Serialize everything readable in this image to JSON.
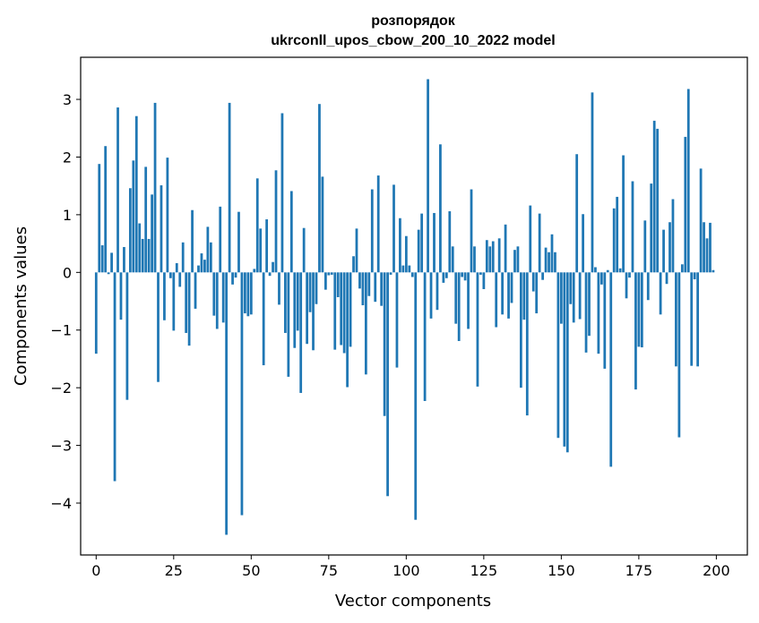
{
  "chart_data": {
    "type": "bar",
    "title": "розпорядок",
    "subtitle": "ukrconll_upos_cbow_200_10_2022 model",
    "xlabel": "Vector components",
    "ylabel": "Components values",
    "xlim": [
      -5,
      210
    ],
    "ylim": [
      -4.9,
      3.73
    ],
    "xticks": [
      0,
      25,
      50,
      75,
      100,
      125,
      150,
      175,
      200
    ],
    "yticks": [
      -4,
      -3,
      -2,
      -1,
      0,
      1,
      2,
      3
    ],
    "ytick_labels": [
      "−4",
      "−3",
      "−2",
      "−1",
      "0",
      "1",
      "2",
      "3"
    ],
    "grid": false,
    "bar_color": "#1f77b4",
    "x": [
      0,
      1,
      2,
      3,
      4,
      5,
      6,
      7,
      8,
      9,
      10,
      11,
      12,
      13,
      14,
      15,
      16,
      17,
      18,
      19,
      20,
      21,
      22,
      23,
      24,
      25,
      26,
      27,
      28,
      29,
      30,
      31,
      32,
      33,
      34,
      35,
      36,
      37,
      38,
      39,
      40,
      41,
      42,
      43,
      44,
      45,
      46,
      47,
      48,
      49,
      50,
      51,
      52,
      53,
      54,
      55,
      56,
      57,
      58,
      59,
      60,
      61,
      62,
      63,
      64,
      65,
      66,
      67,
      68,
      69,
      70,
      71,
      72,
      73,
      74,
      75,
      76,
      77,
      78,
      79,
      80,
      81,
      82,
      83,
      84,
      85,
      86,
      87,
      88,
      89,
      90,
      91,
      92,
      93,
      94,
      95,
      96,
      97,
      98,
      99,
      100,
      101,
      102,
      103,
      104,
      105,
      106,
      107,
      108,
      109,
      110,
      111,
      112,
      113,
      114,
      115,
      116,
      117,
      118,
      119,
      120,
      121,
      122,
      123,
      124,
      125,
      126,
      127,
      128,
      129,
      130,
      131,
      132,
      133,
      134,
      135,
      136,
      137,
      138,
      139,
      140,
      141,
      142,
      143,
      144,
      145,
      146,
      147,
      148,
      149,
      150,
      151,
      152,
      153,
      154,
      155,
      156,
      157,
      158,
      159,
      160,
      161,
      162,
      163,
      164,
      165,
      166,
      167,
      168,
      169,
      170,
      171,
      172,
      173,
      174,
      175,
      176,
      177,
      178,
      179,
      180,
      181,
      182,
      183,
      184,
      185,
      186,
      187,
      188,
      189,
      190,
      191,
      192,
      193,
      194,
      195,
      196,
      197,
      198,
      199
    ],
    "values": [
      -1.41,
      1.88,
      0.47,
      2.19,
      -0.03,
      0.34,
      -3.62,
      2.86,
      -0.82,
      0.44,
      -2.21,
      1.46,
      1.94,
      2.71,
      0.85,
      0.58,
      1.83,
      0.58,
      1.35,
      2.94,
      -1.9,
      1.51,
      -0.83,
      1.99,
      -0.1,
      -1.01,
      0.16,
      -0.25,
      0.52,
      -1.05,
      -1.27,
      1.08,
      -0.63,
      0.12,
      0.33,
      0.22,
      0.79,
      0.52,
      -0.75,
      -0.98,
      1.14,
      -0.87,
      -4.55,
      2.94,
      -0.21,
      -0.09,
      1.05,
      -4.21,
      -0.71,
      -0.76,
      -0.73,
      0.06,
      1.63,
      0.76,
      -1.61,
      0.92,
      -0.06,
      0.18,
      1.77,
      -0.56,
      2.76,
      -1.05,
      -1.81,
      1.41,
      -1.31,
      -1.01,
      -2.09,
      0.77,
      -1.24,
      -0.69,
      -1.35,
      -0.55,
      2.92,
      1.66,
      -0.3,
      -0.05,
      -0.04,
      -1.34,
      -0.43,
      -1.26,
      -1.4,
      -1.99,
      -1.29,
      0.28,
      0.76,
      -0.28,
      -0.57,
      -1.77,
      -0.41,
      1.44,
      -0.51,
      1.68,
      -0.58,
      -2.49,
      -3.88,
      -0.04,
      1.52,
      -1.65,
      0.94,
      0.12,
      0.63,
      0.12,
      -0.08,
      -4.29,
      0.74,
      1.02,
      -2.23,
      3.35,
      -0.8,
      1.03,
      -0.65,
      2.22,
      -0.18,
      -0.1,
      1.06,
      0.45,
      -0.89,
      -1.19,
      -0.08,
      -0.14,
      -0.98,
      1.44,
      0.45,
      -1.98,
      -0.04,
      -0.29,
      0.56,
      0.45,
      0.54,
      -0.95,
      0.59,
      -0.73,
      0.83,
      -0.8,
      -0.53,
      0.39,
      0.45,
      -2.0,
      -0.82,
      -2.48,
      1.16,
      -0.33,
      -0.71,
      1.02,
      -0.13,
      0.43,
      0.35,
      0.66,
      0.35,
      -2.87,
      -0.89,
      -3.02,
      -3.12,
      -0.55,
      -0.87,
      2.05,
      -0.81,
      1.01,
      -1.39,
      -1.1,
      3.12,
      0.09,
      -1.41,
      -0.21,
      -1.67,
      0.04,
      -3.37,
      1.11,
      1.31,
      0.07,
      2.03,
      -0.45,
      -0.09,
      1.58,
      -2.03,
      -1.29,
      -1.3,
      0.9,
      -0.48,
      1.54,
      2.63,
      2.49,
      -0.73,
      0.74,
      -0.2,
      0.87,
      1.27,
      -1.63,
      -2.86,
      0.14,
      2.35,
      3.18,
      -1.62,
      -0.12,
      -1.63,
      1.8,
      0.87,
      0.59,
      0.86,
      0.04
    ]
  }
}
